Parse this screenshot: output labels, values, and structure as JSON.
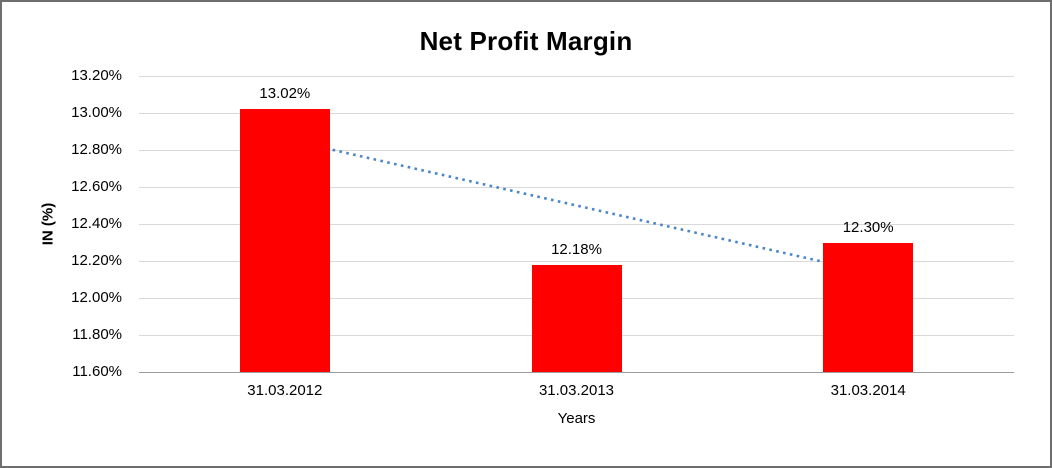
{
  "chart_data": {
    "type": "bar",
    "title": "Net Profit Margin",
    "xlabel": "Years",
    "ylabel": "IN (%)",
    "categories": [
      "31.03.2012",
      "31.03.2013",
      "31.03.2014"
    ],
    "values": [
      13.02,
      12.18,
      12.3
    ],
    "value_labels": [
      "13.02%",
      "12.18%",
      "12.30%"
    ],
    "ylim": [
      11.6,
      13.2
    ],
    "yticks": [
      11.6,
      11.8,
      12.0,
      12.2,
      12.4,
      12.6,
      12.8,
      13.0,
      13.2
    ],
    "ytick_labels": [
      "11.60%",
      "11.80%",
      "12.00%",
      "12.20%",
      "12.40%",
      "12.60%",
      "12.80%",
      "13.00%",
      "13.20%"
    ],
    "grid": true,
    "legend": "none",
    "bar_color": "#ff0000",
    "gridline_color": "#d9d9d9",
    "trendline": {
      "type": "linear",
      "style": "dotted",
      "color": "#4a86c5",
      "start": 12.86,
      "end": 12.14
    }
  }
}
